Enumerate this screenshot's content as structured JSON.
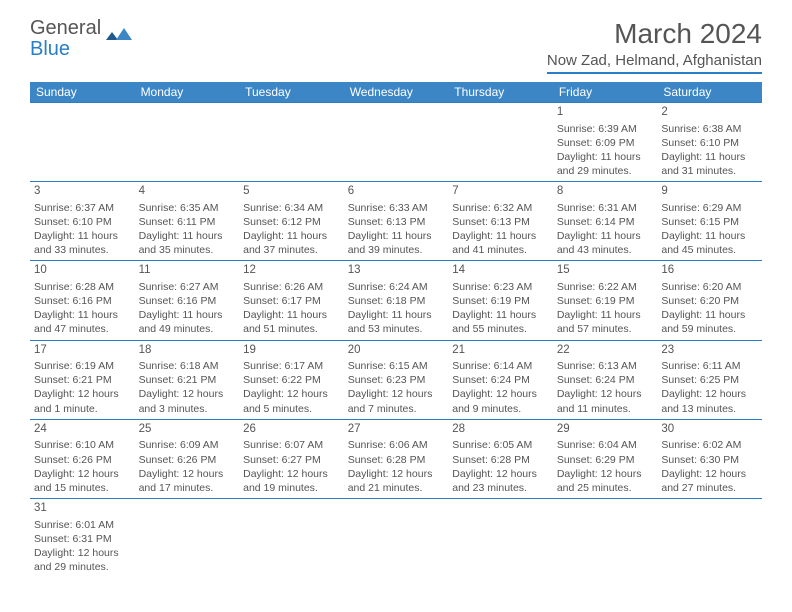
{
  "logo": {
    "general": "General",
    "blue": "Blue"
  },
  "title": "March 2024",
  "subtitle": "Now Zad, Helmand, Afghanistan",
  "colors": {
    "header_bg": "#3d86c6",
    "accent": "#2a7ec5",
    "text": "#555555",
    "bg": "#ffffff"
  },
  "weekdays": [
    "Sunday",
    "Monday",
    "Tuesday",
    "Wednesday",
    "Thursday",
    "Friday",
    "Saturday"
  ],
  "weeks": [
    [
      null,
      null,
      null,
      null,
      null,
      {
        "n": "1",
        "sr": "Sunrise: 6:39 AM",
        "ss": "Sunset: 6:09 PM",
        "d1": "Daylight: 11 hours",
        "d2": "and 29 minutes."
      },
      {
        "n": "2",
        "sr": "Sunrise: 6:38 AM",
        "ss": "Sunset: 6:10 PM",
        "d1": "Daylight: 11 hours",
        "d2": "and 31 minutes."
      }
    ],
    [
      {
        "n": "3",
        "sr": "Sunrise: 6:37 AM",
        "ss": "Sunset: 6:10 PM",
        "d1": "Daylight: 11 hours",
        "d2": "and 33 minutes."
      },
      {
        "n": "4",
        "sr": "Sunrise: 6:35 AM",
        "ss": "Sunset: 6:11 PM",
        "d1": "Daylight: 11 hours",
        "d2": "and 35 minutes."
      },
      {
        "n": "5",
        "sr": "Sunrise: 6:34 AM",
        "ss": "Sunset: 6:12 PM",
        "d1": "Daylight: 11 hours",
        "d2": "and 37 minutes."
      },
      {
        "n": "6",
        "sr": "Sunrise: 6:33 AM",
        "ss": "Sunset: 6:13 PM",
        "d1": "Daylight: 11 hours",
        "d2": "and 39 minutes."
      },
      {
        "n": "7",
        "sr": "Sunrise: 6:32 AM",
        "ss": "Sunset: 6:13 PM",
        "d1": "Daylight: 11 hours",
        "d2": "and 41 minutes."
      },
      {
        "n": "8",
        "sr": "Sunrise: 6:31 AM",
        "ss": "Sunset: 6:14 PM",
        "d1": "Daylight: 11 hours",
        "d2": "and 43 minutes."
      },
      {
        "n": "9",
        "sr": "Sunrise: 6:29 AM",
        "ss": "Sunset: 6:15 PM",
        "d1": "Daylight: 11 hours",
        "d2": "and 45 minutes."
      }
    ],
    [
      {
        "n": "10",
        "sr": "Sunrise: 6:28 AM",
        "ss": "Sunset: 6:16 PM",
        "d1": "Daylight: 11 hours",
        "d2": "and 47 minutes."
      },
      {
        "n": "11",
        "sr": "Sunrise: 6:27 AM",
        "ss": "Sunset: 6:16 PM",
        "d1": "Daylight: 11 hours",
        "d2": "and 49 minutes."
      },
      {
        "n": "12",
        "sr": "Sunrise: 6:26 AM",
        "ss": "Sunset: 6:17 PM",
        "d1": "Daylight: 11 hours",
        "d2": "and 51 minutes."
      },
      {
        "n": "13",
        "sr": "Sunrise: 6:24 AM",
        "ss": "Sunset: 6:18 PM",
        "d1": "Daylight: 11 hours",
        "d2": "and 53 minutes."
      },
      {
        "n": "14",
        "sr": "Sunrise: 6:23 AM",
        "ss": "Sunset: 6:19 PM",
        "d1": "Daylight: 11 hours",
        "d2": "and 55 minutes."
      },
      {
        "n": "15",
        "sr": "Sunrise: 6:22 AM",
        "ss": "Sunset: 6:19 PM",
        "d1": "Daylight: 11 hours",
        "d2": "and 57 minutes."
      },
      {
        "n": "16",
        "sr": "Sunrise: 6:20 AM",
        "ss": "Sunset: 6:20 PM",
        "d1": "Daylight: 11 hours",
        "d2": "and 59 minutes."
      }
    ],
    [
      {
        "n": "17",
        "sr": "Sunrise: 6:19 AM",
        "ss": "Sunset: 6:21 PM",
        "d1": "Daylight: 12 hours",
        "d2": "and 1 minute."
      },
      {
        "n": "18",
        "sr": "Sunrise: 6:18 AM",
        "ss": "Sunset: 6:21 PM",
        "d1": "Daylight: 12 hours",
        "d2": "and 3 minutes."
      },
      {
        "n": "19",
        "sr": "Sunrise: 6:17 AM",
        "ss": "Sunset: 6:22 PM",
        "d1": "Daylight: 12 hours",
        "d2": "and 5 minutes."
      },
      {
        "n": "20",
        "sr": "Sunrise: 6:15 AM",
        "ss": "Sunset: 6:23 PM",
        "d1": "Daylight: 12 hours",
        "d2": "and 7 minutes."
      },
      {
        "n": "21",
        "sr": "Sunrise: 6:14 AM",
        "ss": "Sunset: 6:24 PM",
        "d1": "Daylight: 12 hours",
        "d2": "and 9 minutes."
      },
      {
        "n": "22",
        "sr": "Sunrise: 6:13 AM",
        "ss": "Sunset: 6:24 PM",
        "d1": "Daylight: 12 hours",
        "d2": "and 11 minutes."
      },
      {
        "n": "23",
        "sr": "Sunrise: 6:11 AM",
        "ss": "Sunset: 6:25 PM",
        "d1": "Daylight: 12 hours",
        "d2": "and 13 minutes."
      }
    ],
    [
      {
        "n": "24",
        "sr": "Sunrise: 6:10 AM",
        "ss": "Sunset: 6:26 PM",
        "d1": "Daylight: 12 hours",
        "d2": "and 15 minutes."
      },
      {
        "n": "25",
        "sr": "Sunrise: 6:09 AM",
        "ss": "Sunset: 6:26 PM",
        "d1": "Daylight: 12 hours",
        "d2": "and 17 minutes."
      },
      {
        "n": "26",
        "sr": "Sunrise: 6:07 AM",
        "ss": "Sunset: 6:27 PM",
        "d1": "Daylight: 12 hours",
        "d2": "and 19 minutes."
      },
      {
        "n": "27",
        "sr": "Sunrise: 6:06 AM",
        "ss": "Sunset: 6:28 PM",
        "d1": "Daylight: 12 hours",
        "d2": "and 21 minutes."
      },
      {
        "n": "28",
        "sr": "Sunrise: 6:05 AM",
        "ss": "Sunset: 6:28 PM",
        "d1": "Daylight: 12 hours",
        "d2": "and 23 minutes."
      },
      {
        "n": "29",
        "sr": "Sunrise: 6:04 AM",
        "ss": "Sunset: 6:29 PM",
        "d1": "Daylight: 12 hours",
        "d2": "and 25 minutes."
      },
      {
        "n": "30",
        "sr": "Sunrise: 6:02 AM",
        "ss": "Sunset: 6:30 PM",
        "d1": "Daylight: 12 hours",
        "d2": "and 27 minutes."
      }
    ],
    [
      {
        "n": "31",
        "sr": "Sunrise: 6:01 AM",
        "ss": "Sunset: 6:31 PM",
        "d1": "Daylight: 12 hours",
        "d2": "and 29 minutes."
      },
      null,
      null,
      null,
      null,
      null,
      null
    ]
  ]
}
